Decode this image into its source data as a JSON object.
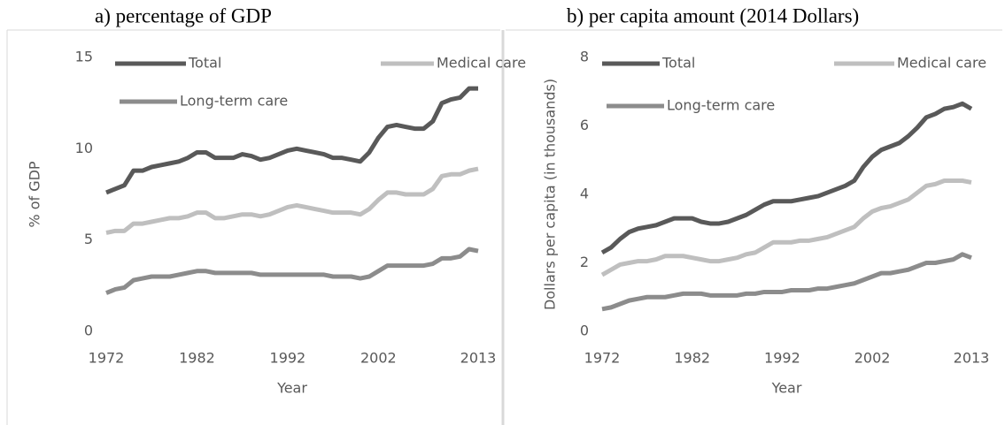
{
  "chart_data": [
    {
      "type": "line",
      "title": "a)   percentage of GDP",
      "y_label": "% of GDP",
      "x_label": "Year",
      "x": [
        1972,
        1973,
        1974,
        1975,
        1976,
        1977,
        1978,
        1979,
        1980,
        1981,
        1982,
        1983,
        1984,
        1985,
        1986,
        1987,
        1988,
        1989,
        1990,
        1991,
        1992,
        1993,
        1994,
        1995,
        1996,
        1997,
        1998,
        1999,
        2000,
        2001,
        2002,
        2003,
        2004,
        2005,
        2006,
        2007,
        2008,
        2009,
        2010,
        2011,
        2012,
        2013
      ],
      "xlim": [
        1972,
        2013
      ],
      "xticks": [
        1972,
        1982,
        1992,
        2002,
        2013
      ],
      "ylim": [
        0,
        15
      ],
      "yticks": [
        0,
        5,
        10,
        15
      ],
      "series": [
        {
          "name": "Total",
          "color": "#595959",
          "values": [
            7.6,
            7.8,
            8.0,
            8.8,
            8.8,
            9.0,
            9.1,
            9.2,
            9.3,
            9.5,
            9.8,
            9.8,
            9.5,
            9.5,
            9.5,
            9.7,
            9.6,
            9.4,
            9.5,
            9.7,
            9.9,
            10.0,
            9.9,
            9.8,
            9.7,
            9.5,
            9.5,
            9.4,
            9.3,
            9.8,
            10.6,
            11.2,
            11.3,
            11.2,
            11.1,
            11.1,
            11.5,
            12.5,
            12.7,
            12.8,
            13.3,
            13.3
          ]
        },
        {
          "name": "Medical care",
          "color": "#bfbfbf",
          "values": [
            5.4,
            5.5,
            5.5,
            5.9,
            5.9,
            6.0,
            6.1,
            6.2,
            6.2,
            6.3,
            6.5,
            6.5,
            6.2,
            6.2,
            6.3,
            6.4,
            6.4,
            6.3,
            6.4,
            6.6,
            6.8,
            6.9,
            6.8,
            6.7,
            6.6,
            6.5,
            6.5,
            6.5,
            6.4,
            6.7,
            7.2,
            7.6,
            7.6,
            7.5,
            7.5,
            7.5,
            7.8,
            8.5,
            8.6,
            8.6,
            8.8,
            8.9
          ]
        },
        {
          "name": "Long-term care",
          "color": "#8c8c8c",
          "values": [
            2.1,
            2.3,
            2.4,
            2.8,
            2.9,
            3.0,
            3.0,
            3.0,
            3.1,
            3.2,
            3.3,
            3.3,
            3.2,
            3.2,
            3.2,
            3.2,
            3.2,
            3.1,
            3.1,
            3.1,
            3.1,
            3.1,
            3.1,
            3.1,
            3.1,
            3.0,
            3.0,
            3.0,
            2.9,
            3.0,
            3.3,
            3.6,
            3.6,
            3.6,
            3.6,
            3.6,
            3.7,
            4.0,
            4.0,
            4.1,
            4.5,
            4.4
          ]
        }
      ]
    },
    {
      "type": "line",
      "title": "b) per capita amount (2014 Dollars)",
      "y_label": "Dollars per capita (in thousands)",
      "x_label": "Year",
      "x": [
        1972,
        1973,
        1974,
        1975,
        1976,
        1977,
        1978,
        1979,
        1980,
        1981,
        1982,
        1983,
        1984,
        1985,
        1986,
        1987,
        1988,
        1989,
        1990,
        1991,
        1992,
        1993,
        1994,
        1995,
        1996,
        1997,
        1998,
        1999,
        2000,
        2001,
        2002,
        2003,
        2004,
        2005,
        2006,
        2007,
        2008,
        2009,
        2010,
        2011,
        2012,
        2013
      ],
      "xlim": [
        1972,
        2013
      ],
      "xticks": [
        1972,
        1982,
        1992,
        2002,
        2013
      ],
      "ylim": [
        0,
        8
      ],
      "yticks": [
        0,
        2,
        4,
        6,
        8
      ],
      "series": [
        {
          "name": "Total",
          "color": "#595959",
          "values": [
            2.3,
            2.45,
            2.7,
            2.9,
            3.0,
            3.05,
            3.1,
            3.2,
            3.3,
            3.3,
            3.3,
            3.2,
            3.15,
            3.15,
            3.2,
            3.3,
            3.4,
            3.55,
            3.7,
            3.8,
            3.8,
            3.8,
            3.85,
            3.9,
            3.95,
            4.05,
            4.15,
            4.25,
            4.4,
            4.8,
            5.1,
            5.3,
            5.4,
            5.5,
            5.7,
            5.95,
            6.25,
            6.35,
            6.5,
            6.55,
            6.65,
            6.5
          ]
        },
        {
          "name": "Medical care",
          "color": "#bfbfbf",
          "values": [
            1.65,
            1.8,
            1.95,
            2.0,
            2.05,
            2.05,
            2.1,
            2.2,
            2.2,
            2.2,
            2.15,
            2.1,
            2.05,
            2.05,
            2.1,
            2.15,
            2.25,
            2.3,
            2.45,
            2.6,
            2.6,
            2.6,
            2.65,
            2.65,
            2.7,
            2.75,
            2.85,
            2.95,
            3.05,
            3.3,
            3.5,
            3.6,
            3.65,
            3.75,
            3.85,
            4.05,
            4.25,
            4.3,
            4.4,
            4.4,
            4.4,
            4.35
          ]
        },
        {
          "name": "Long-term care",
          "color": "#8c8c8c",
          "values": [
            0.65,
            0.7,
            0.8,
            0.9,
            0.95,
            1.0,
            1.0,
            1.0,
            1.05,
            1.1,
            1.1,
            1.1,
            1.05,
            1.05,
            1.05,
            1.05,
            1.1,
            1.1,
            1.15,
            1.15,
            1.15,
            1.2,
            1.2,
            1.2,
            1.25,
            1.25,
            1.3,
            1.35,
            1.4,
            1.5,
            1.6,
            1.7,
            1.7,
            1.75,
            1.8,
            1.9,
            2.0,
            2.0,
            2.05,
            2.1,
            2.25,
            2.15
          ]
        }
      ]
    }
  ]
}
